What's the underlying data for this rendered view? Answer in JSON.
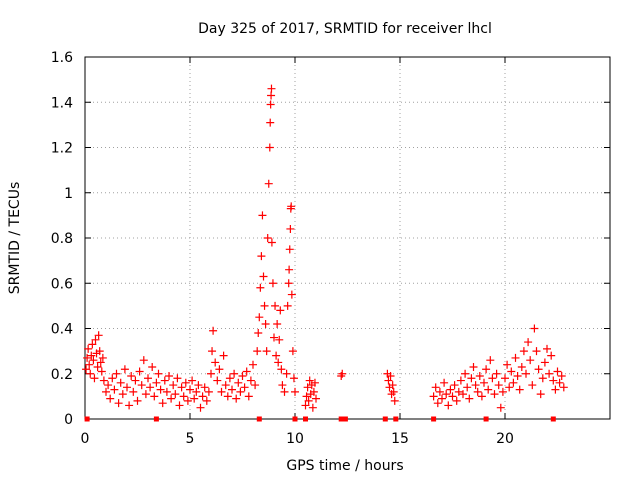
{
  "chart_data": {
    "type": "scatter",
    "title": "Day 325 of 2017, SRMTID for receiver lhcl",
    "xlabel": "GPS time / hours",
    "ylabel": "SRMTID / TECUs",
    "xlim": [
      0,
      25
    ],
    "ylim": [
      0,
      1.6
    ],
    "xticks": [
      0,
      5,
      10,
      15,
      20
    ],
    "xtick_labels": [
      "0",
      "5",
      "10",
      "15",
      "20"
    ],
    "yticks": [
      0,
      0.2,
      0.4,
      0.6,
      0.8,
      1.0,
      1.2,
      1.4,
      1.6
    ],
    "ytick_labels": [
      "0",
      "0.2",
      "0.4",
      "0.6",
      "0.8",
      "1",
      "1.2",
      "1.4",
      "1.6"
    ],
    "grid": true,
    "marker": "+",
    "series_color": "#ff0000",
    "series": [
      {
        "name": "SRMTID",
        "points": [
          [
            0.05,
            0.22
          ],
          [
            0.1,
            0.27
          ],
          [
            0.15,
            0.31
          ],
          [
            0.2,
            0.24
          ],
          [
            0.25,
            0.2
          ],
          [
            0.3,
            0.28
          ],
          [
            0.35,
            0.33
          ],
          [
            0.4,
            0.26
          ],
          [
            0.45,
            0.18
          ],
          [
            0.5,
            0.35
          ],
          [
            0.55,
            0.29
          ],
          [
            0.6,
            0.23
          ],
          [
            0.65,
            0.37
          ],
          [
            0.7,
            0.3
          ],
          [
            0.75,
            0.25
          ],
          [
            0.8,
            0.21
          ],
          [
            0.85,
            0.27
          ],
          [
            0.9,
            0.17
          ],
          [
            1.0,
            0.12
          ],
          [
            1.1,
            0.15
          ],
          [
            1.2,
            0.09
          ],
          [
            1.3,
            0.18
          ],
          [
            1.4,
            0.13
          ],
          [
            1.5,
            0.2
          ],
          [
            1.6,
            0.07
          ],
          [
            1.7,
            0.16
          ],
          [
            1.8,
            0.11
          ],
          [
            1.9,
            0.22
          ],
          [
            2.0,
            0.14
          ],
          [
            2.1,
            0.06
          ],
          [
            2.2,
            0.19
          ],
          [
            2.3,
            0.12
          ],
          [
            2.4,
            0.17
          ],
          [
            2.5,
            0.08
          ],
          [
            2.6,
            0.21
          ],
          [
            2.7,
            0.15
          ],
          [
            2.8,
            0.26
          ],
          [
            2.9,
            0.11
          ],
          [
            3.0,
            0.18
          ],
          [
            3.1,
            0.14
          ],
          [
            3.2,
            0.23
          ],
          [
            3.3,
            0.1
          ],
          [
            3.4,
            0.16
          ],
          [
            3.5,
            0.2
          ],
          [
            3.6,
            0.13
          ],
          [
            3.7,
            0.07
          ],
          [
            3.8,
            0.17
          ],
          [
            3.9,
            0.12
          ],
          [
            4.0,
            0.19
          ],
          [
            4.1,
            0.09
          ],
          [
            4.2,
            0.15
          ],
          [
            4.3,
            0.11
          ],
          [
            4.4,
            0.18
          ],
          [
            4.5,
            0.06
          ],
          [
            4.6,
            0.14
          ],
          [
            4.7,
            0.1
          ],
          [
            4.8,
            0.16
          ],
          [
            4.9,
            0.08
          ],
          [
            5.0,
            0.13
          ],
          [
            5.1,
            0.17
          ],
          [
            5.2,
            0.09
          ],
          [
            5.3,
            0.12
          ],
          [
            5.4,
            0.15
          ],
          [
            5.5,
            0.05
          ],
          [
            5.6,
            0.1
          ],
          [
            5.7,
            0.14
          ],
          [
            5.8,
            0.08
          ],
          [
            5.9,
            0.12
          ],
          [
            6.0,
            0.2
          ],
          [
            6.05,
            0.3
          ],
          [
            6.1,
            0.39
          ],
          [
            6.2,
            0.25
          ],
          [
            6.3,
            0.17
          ],
          [
            6.4,
            0.22
          ],
          [
            6.5,
            0.12
          ],
          [
            6.6,
            0.28
          ],
          [
            6.7,
            0.15
          ],
          [
            6.8,
            0.1
          ],
          [
            6.9,
            0.18
          ],
          [
            7.0,
            0.13
          ],
          [
            7.1,
            0.2
          ],
          [
            7.2,
            0.09
          ],
          [
            7.3,
            0.16
          ],
          [
            7.4,
            0.12
          ],
          [
            7.5,
            0.19
          ],
          [
            7.6,
            0.14
          ],
          [
            7.7,
            0.21
          ],
          [
            7.8,
            0.1
          ],
          [
            7.9,
            0.17
          ],
          [
            8.0,
            0.24
          ],
          [
            8.1,
            0.15
          ],
          [
            8.2,
            0.3
          ],
          [
            8.25,
            0.38
          ],
          [
            8.3,
            0.45
          ],
          [
            8.35,
            0.58
          ],
          [
            8.4,
            0.72
          ],
          [
            8.45,
            0.9
          ],
          [
            8.5,
            0.63
          ],
          [
            8.55,
            0.5
          ],
          [
            8.6,
            0.42
          ],
          [
            8.65,
            0.3
          ],
          [
            8.7,
            0.8
          ],
          [
            8.75,
            1.04
          ],
          [
            8.8,
            1.2
          ],
          [
            8.82,
            1.31
          ],
          [
            8.84,
            1.39
          ],
          [
            8.86,
            1.43
          ],
          [
            8.88,
            1.46
          ],
          [
            8.9,
            0.78
          ],
          [
            8.95,
            0.6
          ],
          [
            9.0,
            0.36
          ],
          [
            9.05,
            0.5
          ],
          [
            9.1,
            0.28
          ],
          [
            9.15,
            0.42
          ],
          [
            9.2,
            0.25
          ],
          [
            9.25,
            0.35
          ],
          [
            9.3,
            0.48
          ],
          [
            9.35,
            0.22
          ],
          [
            9.4,
            0.15
          ],
          [
            9.5,
            0.12
          ],
          [
            9.6,
            0.2
          ],
          [
            9.65,
            0.5
          ],
          [
            9.7,
            0.6
          ],
          [
            9.72,
            0.66
          ],
          [
            9.75,
            0.75
          ],
          [
            9.78,
            0.84
          ],
          [
            9.8,
            0.93
          ],
          [
            9.82,
            0.94
          ],
          [
            9.85,
            0.55
          ],
          [
            9.9,
            0.3
          ],
          [
            9.95,
            0.18
          ],
          [
            10.0,
            0.12
          ],
          [
            10.5,
            0.06
          ],
          [
            10.55,
            0.1
          ],
          [
            10.6,
            0.14
          ],
          [
            10.65,
            0.08
          ],
          [
            10.7,
            0.17
          ],
          [
            10.75,
            0.11
          ],
          [
            10.8,
            0.15
          ],
          [
            10.85,
            0.05
          ],
          [
            10.9,
            0.12
          ],
          [
            10.95,
            0.16
          ],
          [
            11.0,
            0.09
          ],
          [
            12.2,
            0.19
          ],
          [
            12.25,
            0.2
          ],
          [
            14.4,
            0.2
          ],
          [
            14.45,
            0.17
          ],
          [
            14.5,
            0.14
          ],
          [
            14.55,
            0.19
          ],
          [
            14.6,
            0.11
          ],
          [
            14.65,
            0.15
          ],
          [
            14.7,
            0.12
          ],
          [
            14.75,
            0.08
          ],
          [
            16.6,
            0.1
          ],
          [
            16.7,
            0.14
          ],
          [
            16.8,
            0.07
          ],
          [
            16.9,
            0.12
          ],
          [
            17.0,
            0.09
          ],
          [
            17.1,
            0.16
          ],
          [
            17.2,
            0.11
          ],
          [
            17.3,
            0.06
          ],
          [
            17.4,
            0.13
          ],
          [
            17.5,
            0.1
          ],
          [
            17.6,
            0.15
          ],
          [
            17.7,
            0.08
          ],
          [
            17.8,
            0.12
          ],
          [
            17.9,
            0.17
          ],
          [
            18.0,
            0.11
          ],
          [
            18.1,
            0.2
          ],
          [
            18.2,
            0.14
          ],
          [
            18.3,
            0.09
          ],
          [
            18.4,
            0.18
          ],
          [
            18.5,
            0.23
          ],
          [
            18.6,
            0.15
          ],
          [
            18.7,
            0.12
          ],
          [
            18.8,
            0.19
          ],
          [
            18.9,
            0.1
          ],
          [
            19.0,
            0.16
          ],
          [
            19.1,
            0.22
          ],
          [
            19.2,
            0.13
          ],
          [
            19.3,
            0.26
          ],
          [
            19.4,
            0.18
          ],
          [
            19.5,
            0.11
          ],
          [
            19.6,
            0.2
          ],
          [
            19.7,
            0.15
          ],
          [
            19.8,
            0.05
          ],
          [
            19.9,
            0.12
          ],
          [
            20.0,
            0.18
          ],
          [
            20.1,
            0.24
          ],
          [
            20.2,
            0.14
          ],
          [
            20.3,
            0.21
          ],
          [
            20.4,
            0.16
          ],
          [
            20.5,
            0.27
          ],
          [
            20.6,
            0.19
          ],
          [
            20.7,
            0.13
          ],
          [
            20.8,
            0.23
          ],
          [
            20.9,
            0.3
          ],
          [
            21.0,
            0.2
          ],
          [
            21.1,
            0.34
          ],
          [
            21.2,
            0.26
          ],
          [
            21.3,
            0.15
          ],
          [
            21.4,
            0.4
          ],
          [
            21.5,
            0.3
          ],
          [
            21.6,
            0.22
          ],
          [
            21.7,
            0.11
          ],
          [
            21.8,
            0.18
          ],
          [
            21.9,
            0.25
          ],
          [
            22.0,
            0.31
          ],
          [
            22.1,
            0.2
          ],
          [
            22.2,
            0.28
          ],
          [
            22.3,
            0.17
          ],
          [
            22.4,
            0.13
          ],
          [
            22.5,
            0.21
          ],
          [
            22.6,
            0.16
          ],
          [
            22.7,
            0.19
          ],
          [
            22.8,
            0.14
          ]
        ]
      },
      {
        "name": "zero-level markers",
        "marker": "square",
        "points": [
          [
            0.1,
            0
          ],
          [
            3.4,
            0
          ],
          [
            8.3,
            0
          ],
          [
            10.0,
            0
          ],
          [
            10.5,
            0
          ],
          [
            12.2,
            0
          ],
          [
            12.4,
            0
          ],
          [
            14.3,
            0
          ],
          [
            14.8,
            0
          ],
          [
            16.6,
            0
          ],
          [
            19.1,
            0
          ],
          [
            22.3,
            0
          ]
        ]
      }
    ]
  }
}
